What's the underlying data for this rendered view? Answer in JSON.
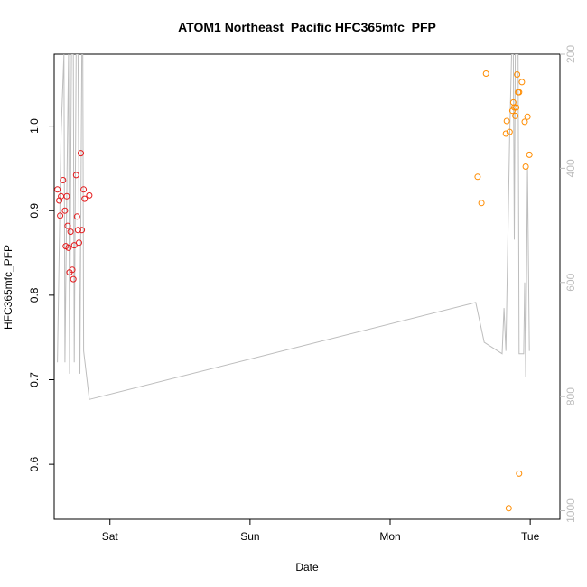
{
  "chart_data": {
    "type": "scatter",
    "title": "ATOM1 Northeast_Pacific HFC365mfc_PFP",
    "xlabel": "Date",
    "ylabel": "HFC365mfc_PFP",
    "x_unit": "days",
    "xlim": [
      "Fri 14:27",
      "Tue 05:05"
    ],
    "ylim": [
      0.535,
      1.085
    ],
    "y2lim": [
      1015,
      200
    ],
    "x_ticks": [
      {
        "label": "Sat",
        "x": "Sat 00:00"
      },
      {
        "label": "Sun",
        "x": "Sun 00:00"
      },
      {
        "label": "Mon",
        "x": "Mon 00:00"
      },
      {
        "label": "Tue",
        "x": "Tue 00:00"
      }
    ],
    "y_ticks": [
      0.6,
      0.7,
      0.8,
      0.9,
      1.0
    ],
    "y_tick_labels": [
      "0.6",
      "0.7",
      "0.8",
      "0.9",
      "1.0"
    ],
    "y2_ticks": [
      200,
      400,
      600,
      800,
      1000
    ],
    "y2_tick_labels": [
      "200",
      "400",
      "600",
      "800",
      "1000"
    ],
    "grid": false,
    "series": [
      {
        "color": "#e41a1c",
        "marker": "circle-open",
        "points": [
          {
            "x": "Fri 15:00",
            "y": 0.925
          },
          {
            "x": "Fri 15:19",
            "y": 0.912
          },
          {
            "x": "Fri 15:38",
            "y": 0.917
          },
          {
            "x": "Fri 15:28",
            "y": 0.894
          },
          {
            "x": "Fri 15:58",
            "y": 0.936
          },
          {
            "x": "Fri 16:17",
            "y": 0.9
          },
          {
            "x": "Fri 16:36",
            "y": 0.917
          },
          {
            "x": "Fri 16:26",
            "y": 0.858
          },
          {
            "x": "Fri 16:45",
            "y": 0.882
          },
          {
            "x": "Fri 16:55",
            "y": 0.856
          },
          {
            "x": "Fri 17:15",
            "y": 0.875
          },
          {
            "x": "Fri 17:05",
            "y": 0.827
          },
          {
            "x": "Fri 17:34",
            "y": 0.83
          },
          {
            "x": "Fri 17:44",
            "y": 0.819
          },
          {
            "x": "Fri 17:53",
            "y": 0.859
          },
          {
            "x": "Fri 18:13",
            "y": 0.942
          },
          {
            "x": "Fri 18:22",
            "y": 0.893
          },
          {
            "x": "Fri 18:32",
            "y": 0.877
          },
          {
            "x": "Fri 18:42",
            "y": 0.862
          },
          {
            "x": "Fri 19:01",
            "y": 0.968
          },
          {
            "x": "Fri 19:11",
            "y": 0.877
          },
          {
            "x": "Fri 19:30",
            "y": 0.925
          },
          {
            "x": "Fri 19:40",
            "y": 0.914
          },
          {
            "x": "Fri 20:28",
            "y": 0.918
          }
        ]
      },
      {
        "color": "#ff8c00",
        "marker": "circle-open",
        "points": [
          {
            "x": "Mon 14:59",
            "y": 0.94
          },
          {
            "x": "Mon 15:38",
            "y": 0.909
          },
          {
            "x": "Mon 16:26",
            "y": 1.062
          },
          {
            "x": "Mon 19:50",
            "y": 0.991
          },
          {
            "x": "Mon 19:59",
            "y": 1.006
          },
          {
            "x": "Mon 20:28",
            "y": 0.993
          },
          {
            "x": "Mon 20:19",
            "y": 0.548
          },
          {
            "x": "Mon 20:57",
            "y": 1.018
          },
          {
            "x": "Mon 21:06",
            "y": 1.028
          },
          {
            "x": "Mon 21:16",
            "y": 1.022
          },
          {
            "x": "Mon 21:26",
            "y": 1.012
          },
          {
            "x": "Mon 21:36",
            "y": 1.022
          },
          {
            "x": "Mon 21:45",
            "y": 1.061
          },
          {
            "x": "Mon 21:55",
            "y": 1.04
          },
          {
            "x": "Mon 22:05",
            "y": 1.04
          },
          {
            "x": "Mon 22:05",
            "y": 0.589
          },
          {
            "x": "Mon 22:34",
            "y": 1.052
          },
          {
            "x": "Mon 23:03",
            "y": 1.005
          },
          {
            "x": "Mon 23:13",
            "y": 0.952
          },
          {
            "x": "Mon 23:32",
            "y": 1.011
          },
          {
            "x": "Mon 23:51",
            "y": 0.966
          }
        ]
      }
    ],
    "secondary_line": {
      "color": "#bdbdbd",
      "axis": "right",
      "points": [
        {
          "x": "Fri 15:00",
          "y": 740
        },
        {
          "x": "Fri 15:38",
          "y": 340
        },
        {
          "x": "Fri 16:07",
          "y": 200
        },
        {
          "x": "Fri 16:17",
          "y": 740
        },
        {
          "x": "Fri 16:36",
          "y": 450
        },
        {
          "x": "Fri 16:55",
          "y": 200
        },
        {
          "x": "Fri 17:05",
          "y": 760
        },
        {
          "x": "Fri 17:24",
          "y": 200
        },
        {
          "x": "Fri 17:44",
          "y": 200
        },
        {
          "x": "Fri 17:53",
          "y": 740
        },
        {
          "x": "Fri 18:13",
          "y": 200
        },
        {
          "x": "Fri 18:32",
          "y": 200
        },
        {
          "x": "Fri 18:52",
          "y": 760
        },
        {
          "x": "Fri 19:11",
          "y": 200
        },
        {
          "x": "Fri 19:21",
          "y": 200
        },
        {
          "x": "Fri 19:30",
          "y": 720
        },
        {
          "x": "Fri 20:28",
          "y": 805
        },
        {
          "x": "Mon 14:40",
          "y": 635
        },
        {
          "x": "Mon 16:07",
          "y": 705
        },
        {
          "x": "Mon 19:11",
          "y": 725
        },
        {
          "x": "Mon 19:30",
          "y": 645
        },
        {
          "x": "Mon 19:50",
          "y": 720
        },
        {
          "x": "Mon 20:28",
          "y": 350
        },
        {
          "x": "Mon 20:48",
          "y": 200
        },
        {
          "x": "Mon 21:06",
          "y": 200
        },
        {
          "x": "Mon 21:16",
          "y": 525
        },
        {
          "x": "Mon 21:26",
          "y": 200
        },
        {
          "x": "Mon 21:55",
          "y": 200
        },
        {
          "x": "Mon 22:05",
          "y": 725
        },
        {
          "x": "Mon 22:53",
          "y": 725
        },
        {
          "x": "Mon 23:03",
          "y": 600
        },
        {
          "x": "Mon 23:13",
          "y": 765
        },
        {
          "x": "Mon 23:32",
          "y": 400
        },
        {
          "x": "Mon 23:51",
          "y": 720
        }
      ]
    }
  }
}
